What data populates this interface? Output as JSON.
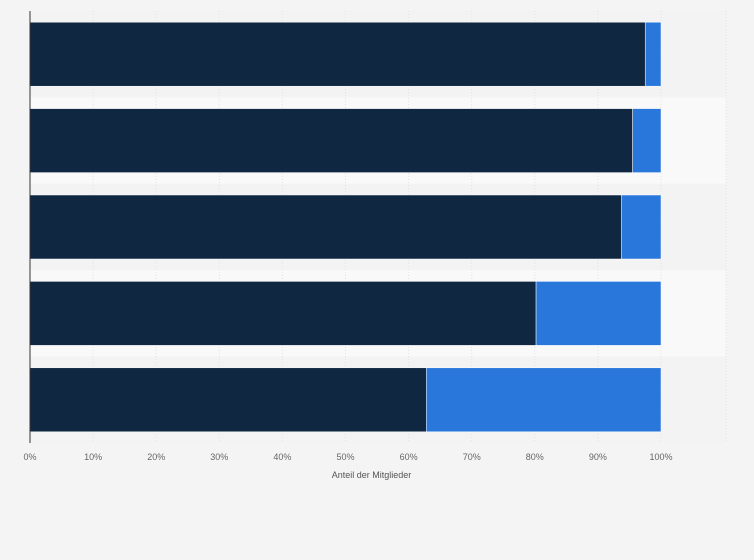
{
  "chart_data": {
    "type": "bar",
    "orientation": "horizontal",
    "stacked": true,
    "title": "",
    "xlabel": "Anteil der Mitglieder",
    "ylabel": "",
    "xlim": [
      0,
      100
    ],
    "grid": true,
    "legend": "none",
    "x_ticks": [
      "0%",
      "10%",
      "20%",
      "30%",
      "40%",
      "50%",
      "60%",
      "70%",
      "80%",
      "90%",
      "100%"
    ],
    "categories": [
      "",
      "",
      "",
      "",
      ""
    ],
    "series": [
      {
        "color": "#0f2740",
        "values": [
          97.5,
          95.5,
          93.7,
          80.2,
          62.8
        ]
      },
      {
        "color": "#2a77dc",
        "values": [
          2.5,
          4.5,
          6.3,
          19.8,
          37.2
        ]
      }
    ]
  }
}
